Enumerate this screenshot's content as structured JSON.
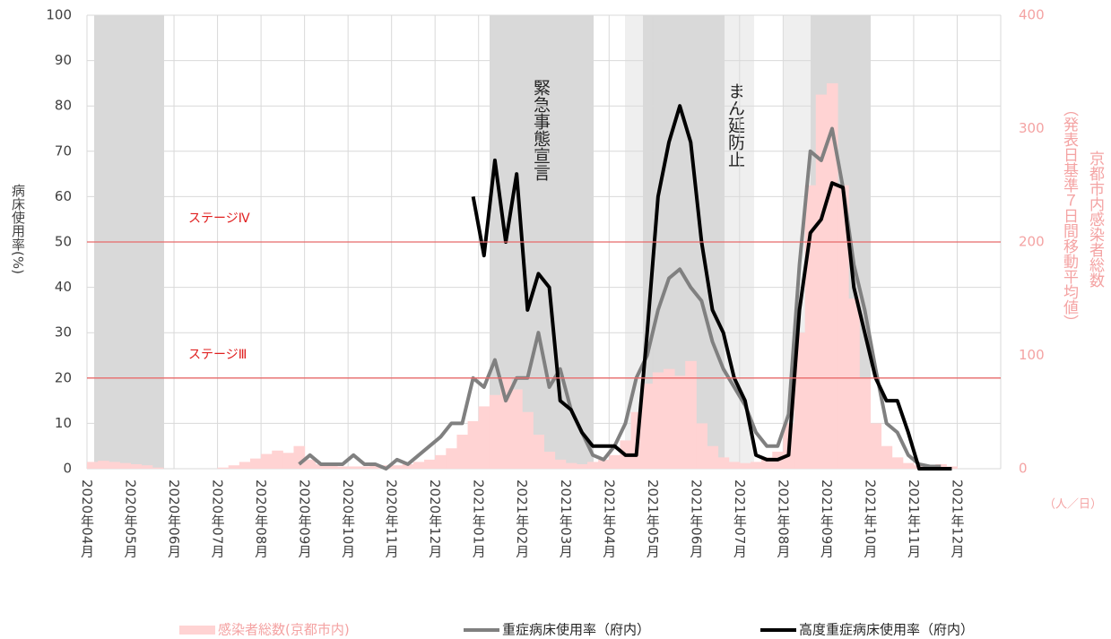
{
  "chart_data": {
    "type": "combo",
    "ylabel": "病床使用率(%)",
    "y2label": [
      "京都市内感染者総数",
      "（発表日基準７日間移動平均値）"
    ],
    "y2unit": "（人／日）",
    "ylim": [
      0,
      100
    ],
    "yticks": [
      0,
      10,
      20,
      30,
      40,
      50,
      60,
      70,
      80,
      90,
      100
    ],
    "y2lim": [
      0,
      400
    ],
    "y2ticks": [
      0,
      100,
      200,
      300,
      400
    ],
    "grid": true,
    "legend": "bottom",
    "annotations": [
      "緊急事態宣言",
      "まん延防止"
    ],
    "reference_lines": [
      {
        "label": "ステージⅣ",
        "value": 50,
        "color": "#e86a6a"
      },
      {
        "label": "ステージⅢ",
        "value": 20,
        "color": "#e86a6a"
      }
    ],
    "categories": [
      "2020年04月",
      null,
      null,
      null,
      "2020年05月",
      null,
      null,
      null,
      "2020年06月",
      null,
      null,
      null,
      "2020年07月",
      null,
      null,
      null,
      "2020年08月",
      null,
      null,
      null,
      "2020年09月",
      null,
      null,
      null,
      "2020年10月",
      null,
      null,
      null,
      "2020年11月",
      null,
      null,
      null,
      "2020年12月",
      null,
      null,
      null,
      "2021年01月",
      null,
      null,
      null,
      "2021年02月",
      null,
      null,
      null,
      "2021年03月",
      null,
      null,
      null,
      "2021年04月",
      null,
      null,
      null,
      "2021年05月",
      null,
      null,
      null,
      "2021年06月",
      null,
      null,
      null,
      "2021年07月",
      null,
      null,
      null,
      "2021年08月",
      null,
      null,
      null,
      "2021年09月",
      null,
      null,
      null,
      "2021年10月",
      null,
      null,
      null,
      "2021年11月",
      null,
      null,
      null,
      "2021年12月",
      null,
      null,
      null
    ],
    "series": [
      {
        "name": "感染者総数(京都市内)",
        "type": "area",
        "axis": "y2",
        "color": "#ffd3d3",
        "values": [
          6,
          7,
          6,
          5,
          4,
          3,
          1,
          0,
          0,
          0,
          0,
          0,
          1,
          3,
          6,
          9,
          13,
          16,
          14,
          20,
          8,
          4,
          3,
          2,
          2,
          2,
          3,
          3,
          3,
          4,
          6,
          8,
          12,
          18,
          30,
          42,
          55,
          65,
          80,
          70,
          50,
          30,
          15,
          8,
          5,
          4,
          6,
          8,
          12,
          25,
          50,
          75,
          85,
          88,
          82,
          95,
          40,
          20,
          10,
          6,
          5,
          6,
          10,
          15,
          40,
          120,
          250,
          330,
          340,
          250,
          150,
          80,
          40,
          20,
          10,
          5,
          3,
          2,
          4,
          2,
          null,
          null,
          null,
          null
        ]
      },
      {
        "name": "重症病床使用率（府内）",
        "type": "line",
        "axis": "y",
        "color": "#808080",
        "values": [
          null,
          null,
          null,
          null,
          null,
          null,
          null,
          null,
          null,
          null,
          null,
          null,
          null,
          null,
          null,
          null,
          null,
          null,
          null,
          1,
          3,
          1,
          1,
          1,
          3,
          1,
          1,
          0,
          2,
          1,
          3,
          5,
          7,
          10,
          10,
          20,
          18,
          24,
          15,
          20,
          20,
          30,
          18,
          22,
          13,
          8,
          3,
          2,
          5,
          10,
          20,
          25,
          35,
          42,
          44,
          40,
          37,
          28,
          22,
          18,
          14,
          8,
          5,
          5,
          12,
          45,
          70,
          68,
          75,
          62,
          45,
          35,
          22,
          10,
          8,
          3,
          1,
          0.5,
          0.5,
          null,
          null,
          null,
          null,
          null
        ]
      },
      {
        "name": "高度重症病床使用率（府内）",
        "type": "line",
        "axis": "y",
        "color": "#000000",
        "values": [
          null,
          null,
          null,
          null,
          null,
          null,
          null,
          null,
          null,
          null,
          null,
          null,
          null,
          null,
          null,
          null,
          null,
          null,
          null,
          null,
          null,
          null,
          null,
          null,
          null,
          null,
          null,
          null,
          null,
          null,
          null,
          null,
          null,
          null,
          null,
          60,
          47,
          68,
          50,
          65,
          35,
          43,
          40,
          15,
          13,
          8,
          5,
          5,
          5,
          3,
          3,
          30,
          60,
          72,
          80,
          72,
          50,
          35,
          30,
          20,
          15,
          3,
          2,
          2,
          3,
          35,
          52,
          55,
          63,
          62,
          40,
          30,
          20,
          15,
          15,
          8,
          0,
          0,
          0,
          0,
          null,
          null,
          null,
          null
        ]
      }
    ]
  }
}
